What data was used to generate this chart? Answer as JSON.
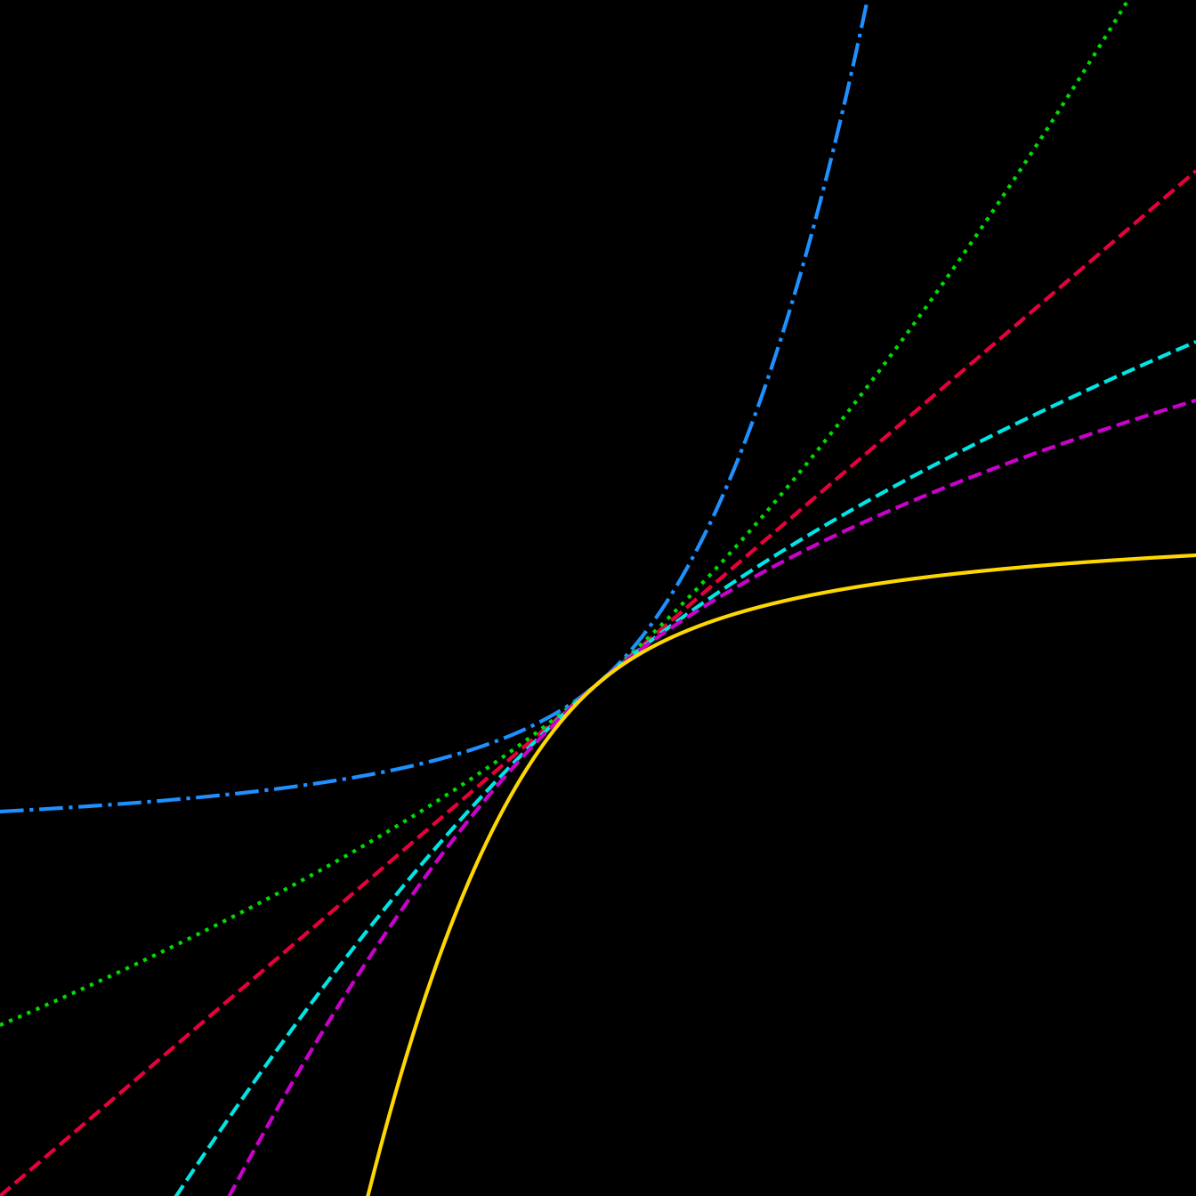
{
  "background_color": "#000000",
  "xlim": [
    -3,
    3
  ],
  "ylim": [
    -3,
    4
  ],
  "lambdas": [
    1.0,
    1.5,
    3.0,
    0.5,
    0.25,
    -1.0
  ],
  "colors": [
    "#e8003d",
    "#00dd00",
    "#1e90ff",
    "#00e5e5",
    "#cc00cc",
    "#ffd700"
  ],
  "linestyles": [
    "--",
    ":",
    "-.",
    "--",
    "--",
    "-"
  ],
  "linewidths": [
    3.0,
    3.0,
    3.0,
    3.0,
    3.0,
    3.0
  ],
  "lambda_labels": [
    "",
    "",
    "",
    "",
    "",
    ""
  ],
  "legend_facecolor": "#000000",
  "legend_edgecolor": "#000000"
}
